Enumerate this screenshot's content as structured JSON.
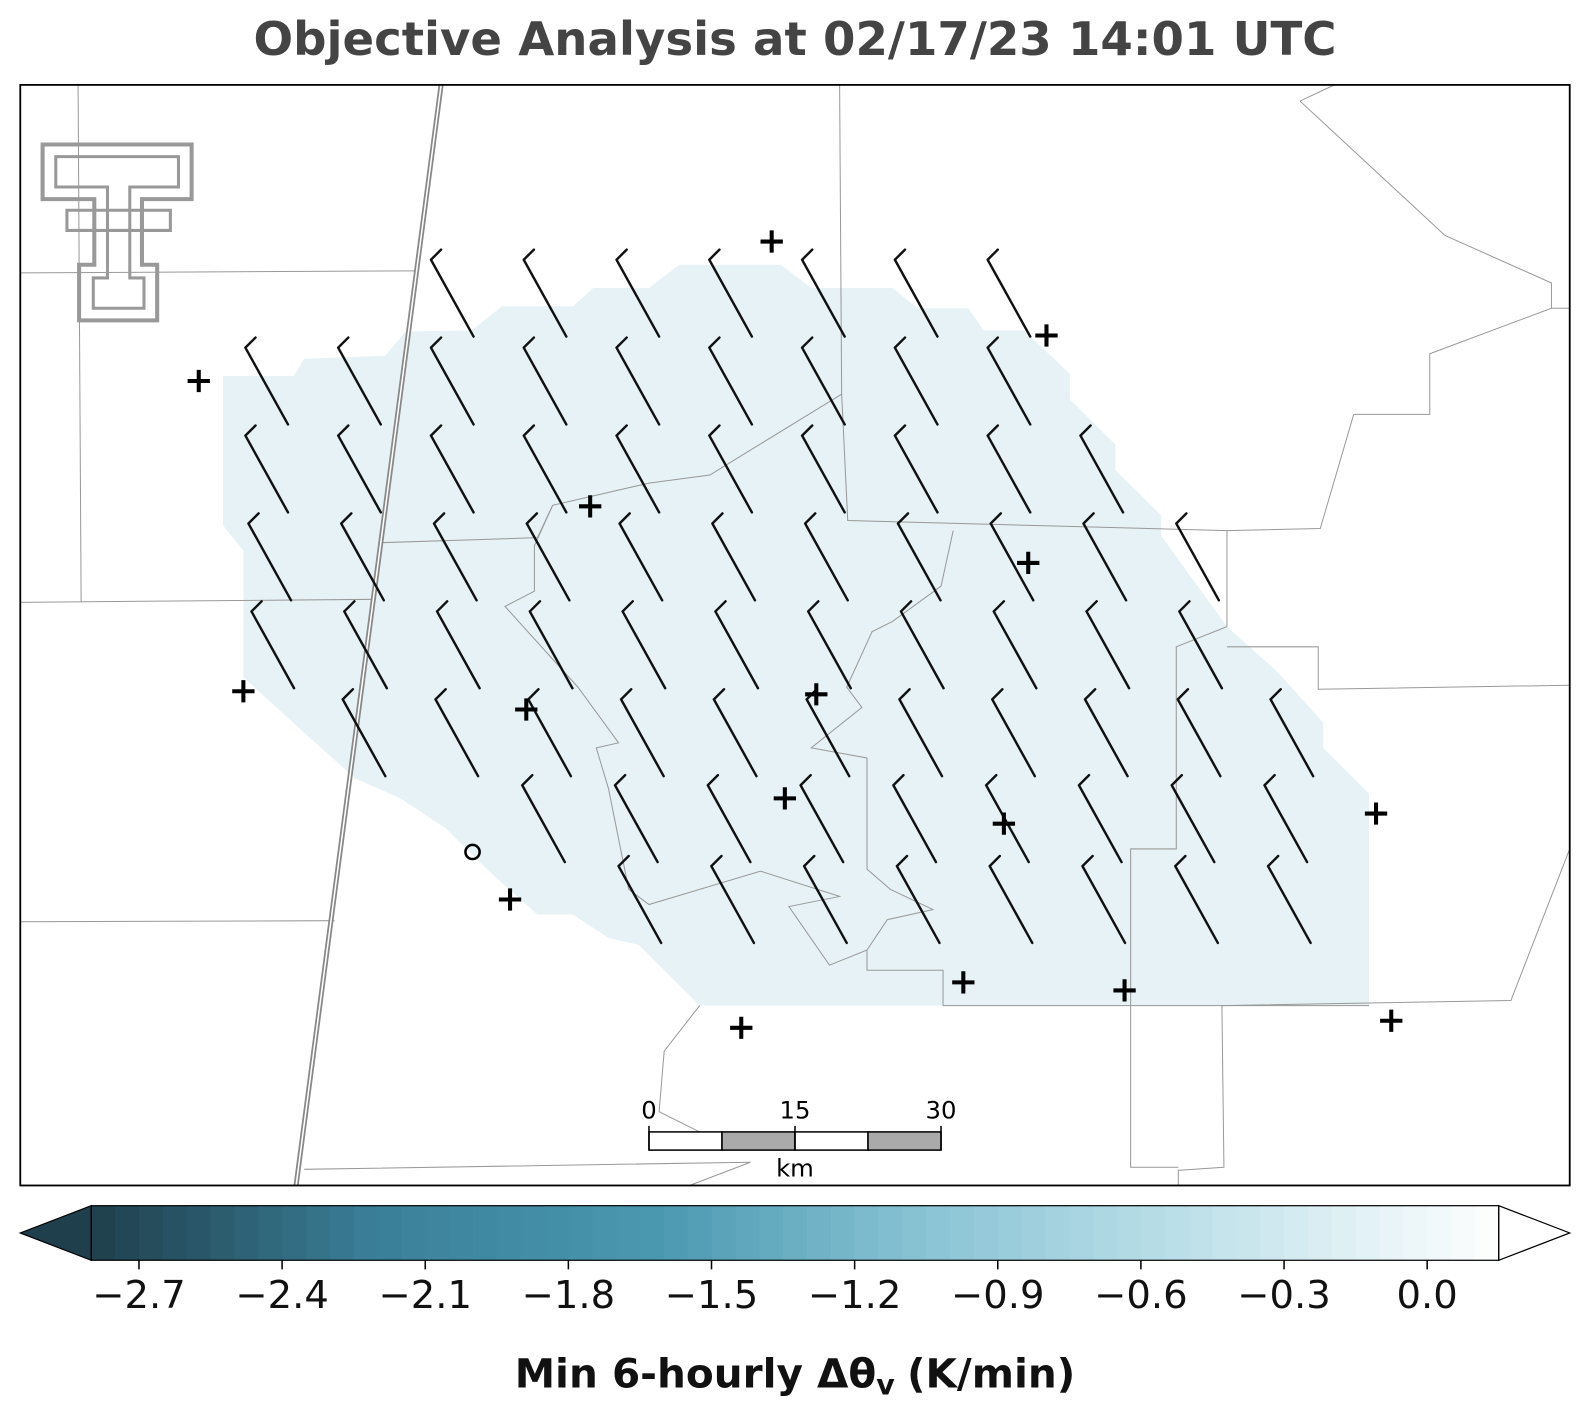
{
  "title": "Objective Analysis at 02/17/23 14:01 UTC",
  "scale_bar": {
    "ticks": [
      0,
      15,
      30
    ],
    "unit": "km"
  },
  "colorbar": {
    "label": [
      "Min 6-hourly Δθ",
      "v",
      "(K/min)"
    ],
    "lim": [
      -2.8,
      0.15
    ],
    "ticks": [
      {
        "value": -2.7,
        "label": "−2.7"
      },
      {
        "value": -2.4,
        "label": "−2.4"
      },
      {
        "value": -2.1,
        "label": "−2.1"
      },
      {
        "value": -1.8,
        "label": "−1.8"
      },
      {
        "value": -1.5,
        "label": "−1.5"
      },
      {
        "value": -1.2,
        "label": "−1.2"
      },
      {
        "value": -0.9,
        "label": "−0.9"
      },
      {
        "value": -0.6,
        "label": "−0.6"
      },
      {
        "value": -0.3,
        "label": "−0.3"
      },
      {
        "value": 0.0,
        "label": "0.0"
      }
    ],
    "colors": [
      "#1f3f4c",
      "#3a7f98",
      "#4a98b0",
      "#8cc5d6",
      "#c3e3eb",
      "#ffffff"
    ]
  }
}
